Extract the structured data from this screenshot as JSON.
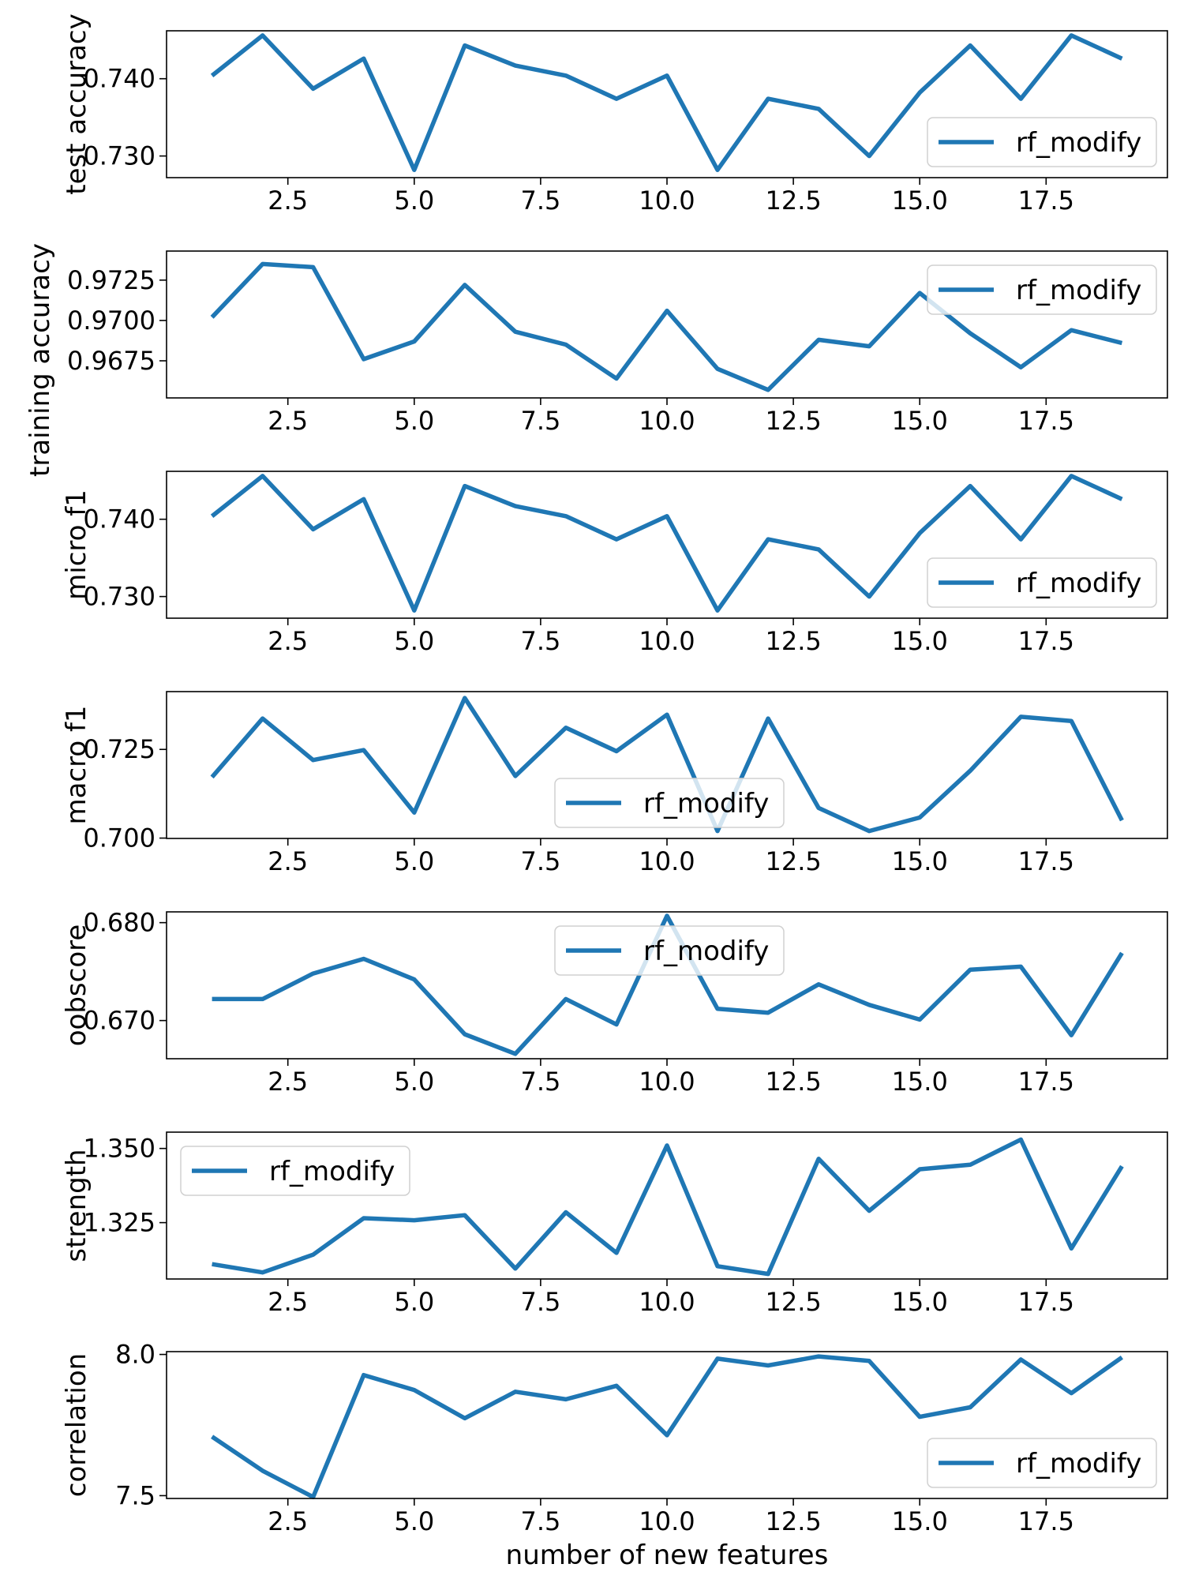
{
  "chart_data": [
    {
      "type": "line",
      "ylabel": "test accuracy",
      "xlabel": "",
      "x": [
        1,
        2,
        3,
        4,
        5,
        6,
        7,
        8,
        9,
        10,
        11,
        12,
        13,
        14,
        15,
        16,
        17,
        18,
        19
      ],
      "xlim": [
        0.1,
        19.9
      ],
      "ylim": [
        0.7272,
        0.7462
      ],
      "xticks": [
        2.5,
        5.0,
        7.5,
        10.0,
        12.5,
        15.0,
        17.5
      ],
      "yticks": [
        0.73,
        0.74
      ],
      "ytick_labels": [
        "0.730",
        "0.740"
      ],
      "legend_position": "lower-right",
      "series": [
        {
          "name": "rf_modify",
          "color": "#1f77b4",
          "values": [
            0.7404,
            0.7456,
            0.7387,
            0.7426,
            0.7282,
            0.7443,
            0.7417,
            0.7404,
            0.7374,
            0.7404,
            0.7282,
            0.7374,
            0.7361,
            0.73,
            0.7382,
            0.7443,
            0.7374,
            0.7456,
            0.7426
          ]
        }
      ]
    },
    {
      "type": "line",
      "ylabel": "training accuracy",
      "xlabel": "",
      "x": [
        1,
        2,
        3,
        4,
        5,
        6,
        7,
        8,
        9,
        10,
        11,
        12,
        13,
        14,
        15,
        16,
        17,
        18,
        19
      ],
      "xlim": [
        0.1,
        19.9
      ],
      "ylim": [
        0.9652,
        0.9743
      ],
      "xticks": [
        2.5,
        5.0,
        7.5,
        10.0,
        12.5,
        15.0,
        17.5
      ],
      "yticks": [
        0.9675,
        0.97,
        0.9725
      ],
      "ytick_labels": [
        "0.9675",
        "0.9700",
        "0.9725"
      ],
      "legend_position": "upper-right",
      "series": [
        {
          "name": "rf_modify",
          "color": "#1f77b4",
          "values": [
            0.9702,
            0.9735,
            0.9733,
            0.9676,
            0.9687,
            0.9722,
            0.9693,
            0.9685,
            0.9664,
            0.9706,
            0.967,
            0.9657,
            0.9688,
            0.9684,
            0.9717,
            0.9692,
            0.9671,
            0.9694,
            0.9686
          ]
        }
      ]
    },
    {
      "type": "line",
      "ylabel": "micro f1",
      "xlabel": "",
      "x": [
        1,
        2,
        3,
        4,
        5,
        6,
        7,
        8,
        9,
        10,
        11,
        12,
        13,
        14,
        15,
        16,
        17,
        18,
        19
      ],
      "xlim": [
        0.1,
        19.9
      ],
      "ylim": [
        0.7272,
        0.7462
      ],
      "xticks": [
        2.5,
        5.0,
        7.5,
        10.0,
        12.5,
        15.0,
        17.5
      ],
      "yticks": [
        0.73,
        0.74
      ],
      "ytick_labels": [
        "0.730",
        "0.740"
      ],
      "legend_position": "lower-right",
      "series": [
        {
          "name": "rf_modify",
          "color": "#1f77b4",
          "values": [
            0.7404,
            0.7456,
            0.7387,
            0.7426,
            0.7282,
            0.7443,
            0.7417,
            0.7404,
            0.7374,
            0.7404,
            0.7282,
            0.7374,
            0.7361,
            0.73,
            0.7382,
            0.7443,
            0.7374,
            0.7456,
            0.7426
          ]
        }
      ]
    },
    {
      "type": "line",
      "ylabel": "macro f1",
      "xlabel": "",
      "x": [
        1,
        2,
        3,
        4,
        5,
        6,
        7,
        8,
        9,
        10,
        11,
        12,
        13,
        14,
        15,
        16,
        17,
        18,
        19
      ],
      "xlim": [
        0.1,
        19.9
      ],
      "ylim": [
        0.6999,
        0.7413
      ],
      "xticks": [
        2.5,
        5.0,
        7.5,
        10.0,
        12.5,
        15.0,
        17.5
      ],
      "yticks": [
        0.7,
        0.725
      ],
      "ytick_labels": [
        "0.700",
        "0.725"
      ],
      "legend_position": "lower-center",
      "series": [
        {
          "name": "rf_modify",
          "color": "#1f77b4",
          "values": [
            0.7172,
            0.7337,
            0.722,
            0.7248,
            0.7072,
            0.7395,
            0.7175,
            0.7311,
            0.7245,
            0.7348,
            0.702,
            0.7337,
            0.7085,
            0.702,
            0.7058,
            0.719,
            0.7342,
            0.733,
            0.705
          ]
        }
      ]
    },
    {
      "type": "line",
      "ylabel": "oobscore",
      "xlabel": "",
      "x": [
        1,
        2,
        3,
        4,
        5,
        6,
        7,
        8,
        9,
        10,
        11,
        12,
        13,
        14,
        15,
        16,
        17,
        18,
        19
      ],
      "xlim": [
        0.1,
        19.9
      ],
      "ylim": [
        0.6661,
        0.6811
      ],
      "xticks": [
        2.5,
        5.0,
        7.5,
        10.0,
        12.5,
        15.0,
        17.5
      ],
      "yticks": [
        0.67,
        0.68
      ],
      "ytick_labels": [
        "0.670",
        "0.680"
      ],
      "legend_position": "upper-center",
      "series": [
        {
          "name": "rf_modify",
          "color": "#1f77b4",
          "values": [
            0.6722,
            0.6722,
            0.6748,
            0.6763,
            0.6742,
            0.6686,
            0.6666,
            0.6722,
            0.6696,
            0.6807,
            0.6712,
            0.6708,
            0.6737,
            0.6716,
            0.6701,
            0.6752,
            0.6755,
            0.6685,
            0.6769
          ]
        }
      ]
    },
    {
      "type": "line",
      "ylabel": "strength",
      "xlabel": "",
      "x": [
        1,
        2,
        3,
        4,
        5,
        6,
        7,
        8,
        9,
        10,
        11,
        12,
        13,
        14,
        15,
        16,
        17,
        18,
        19
      ],
      "xlim": [
        0.1,
        19.9
      ],
      "ylim": [
        1.306,
        1.3555
      ],
      "xticks": [
        2.5,
        5.0,
        7.5,
        10.0,
        12.5,
        15.0,
        17.5
      ],
      "yticks": [
        1.325,
        1.35
      ],
      "ytick_labels": [
        "1.325",
        "1.350"
      ],
      "legend_position": "upper-left",
      "series": [
        {
          "name": "rf_modify",
          "color": "#1f77b4",
          "values": [
            1.311,
            1.3082,
            1.3142,
            1.3265,
            1.3258,
            1.3275,
            1.3095,
            1.3285,
            1.3148,
            1.351,
            1.3103,
            1.3077,
            1.3465,
            1.329,
            1.343,
            1.3445,
            1.353,
            1.3163,
            1.344
          ]
        }
      ]
    },
    {
      "type": "line",
      "ylabel": "correlation",
      "xlabel": "number of new features",
      "x": [
        1,
        2,
        3,
        4,
        5,
        6,
        7,
        8,
        9,
        10,
        11,
        12,
        13,
        14,
        15,
        16,
        17,
        18,
        19
      ],
      "xlim": [
        0.1,
        19.9
      ],
      "ylim": [
        7.49,
        8.01
      ],
      "xticks": [
        2.5,
        5.0,
        7.5,
        10.0,
        12.5,
        15.0,
        17.5
      ],
      "yticks": [
        7.5,
        8.0
      ],
      "ytick_labels": [
        "7.5",
        "8.0"
      ],
      "legend_position": "lower-right",
      "series": [
        {
          "name": "rf_modify",
          "color": "#1f77b4",
          "values": [
            7.709,
            7.588,
            7.495,
            7.927,
            7.874,
            7.774,
            7.868,
            7.841,
            7.889,
            7.714,
            7.985,
            7.961,
            7.993,
            7.977,
            7.779,
            7.813,
            7.982,
            7.863,
            7.99
          ]
        }
      ]
    }
  ]
}
